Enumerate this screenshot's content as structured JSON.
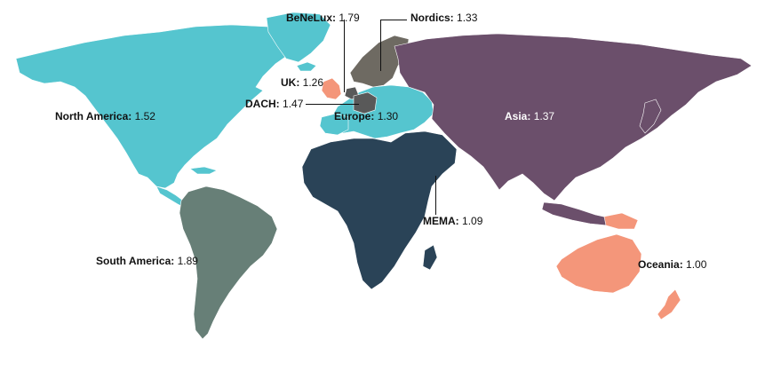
{
  "colors": {
    "north_america": "#55c5cf",
    "south_america": "#677f77",
    "europe": "#55c5cf",
    "uk": "#f4967a",
    "benelux": "#595959",
    "dach": "#595959",
    "nordics": "#6e6a62",
    "asia": "#6b4f6b",
    "mema": "#2a4357",
    "oceania": "#f4967a",
    "leader_lines": "#111111"
  },
  "regions": {
    "north_america": {
      "name": "North America:",
      "value": "1.52"
    },
    "south_america": {
      "name": "South America:",
      "value": "1.89"
    },
    "uk": {
      "name": "UK:",
      "value": "1.26"
    },
    "benelux": {
      "name": "BeNeLux:",
      "value": "1.79"
    },
    "nordics": {
      "name": "Nordics:",
      "value": "1.33"
    },
    "dach": {
      "name": "DACH:",
      "value": "1.47"
    },
    "europe": {
      "name": "Europe:",
      "value": "1.30"
    },
    "asia": {
      "name": "Asia:",
      "value": "1.37"
    },
    "mema": {
      "name": "MEMA:",
      "value": "1.09"
    },
    "oceania": {
      "name": "Oceania:",
      "value": "1.00"
    }
  }
}
